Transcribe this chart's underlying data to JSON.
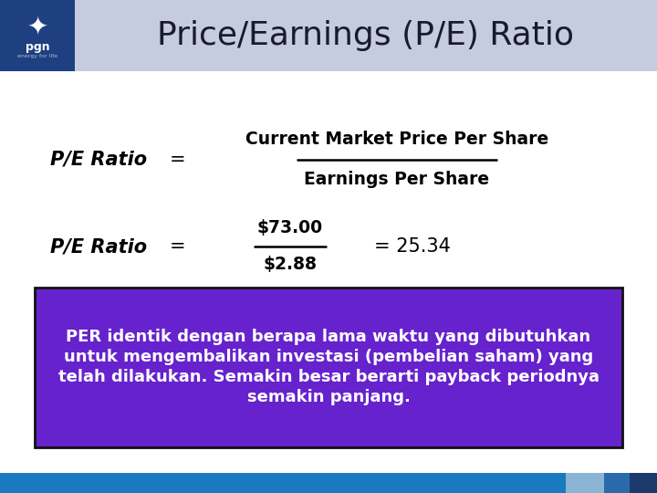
{
  "title": "Price/Earnings (P/E) Ratio",
  "title_color": "#1a1a2e",
  "header_bg": "#c5cce0",
  "header_left_bg": "#1e4080",
  "body_bg": "#ffffff",
  "footer_main_color": "#1a7abf",
  "footer_light_color": "#8ab4d4",
  "footer_mid_color": "#2a6aaa",
  "footer_dark_color": "#1a3a6b",
  "numerator": "Current Market Price Per Share",
  "denominator": "Earnings Per Share",
  "example_num": "$73.00",
  "example_den": "$2.88",
  "example_result": "= 25.34",
  "box_bg": "#6622cc",
  "box_border": "#111111",
  "box_text_line1": "PER identik dengan berapa lama waktu yang dibutuhkan",
  "box_text_line2": "untuk mengembalikan investasi (pembelian saham) yang",
  "box_text_line3": "telah dilakukan. Semakin besar berarti payback periodnya",
  "box_text_line4": "semakin panjang.",
  "box_text_color": "#ffffff",
  "logo_bg": "#1e4080"
}
